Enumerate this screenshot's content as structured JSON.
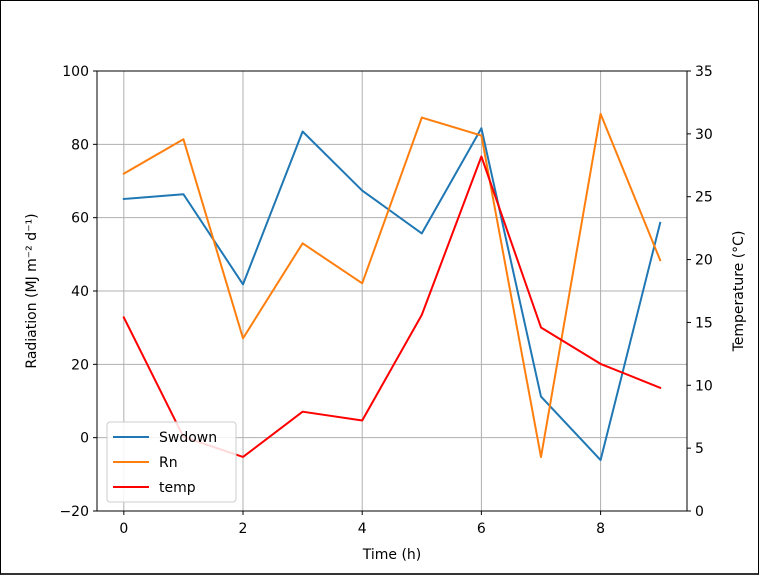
{
  "chart_data": {
    "type": "line",
    "title": "",
    "xlabel": "Time (h)",
    "ylabel_left": "Radiation (MJ m⁻² d⁻¹)",
    "ylabel_right": "Temperature (°C)",
    "xlim": [
      -0.45,
      9.45
    ],
    "ylim_left": [
      -20,
      100
    ],
    "ylim_right": [
      0,
      35
    ],
    "xticks": [
      0,
      2,
      4,
      6,
      8
    ],
    "yticks_left": [
      -20,
      0,
      20,
      40,
      60,
      80,
      100
    ],
    "yticks_right": [
      0,
      5,
      10,
      15,
      20,
      25,
      30,
      35
    ],
    "grid": true,
    "legend_position": "lower-left",
    "x": [
      0,
      1,
      2,
      3,
      4,
      5,
      6,
      7,
      8,
      9
    ],
    "series": [
      {
        "name": "Swdown",
        "axis": "left",
        "color": "#1f77b4",
        "values": [
          65.1,
          66.4,
          41.8,
          83.5,
          67.4,
          55.7,
          84.4,
          11.2,
          -6.1,
          58.6
        ]
      },
      {
        "name": "Rn",
        "axis": "left",
        "color": "#ff7f0e",
        "values": [
          72.0,
          81.4,
          27.1,
          53.0,
          42.1,
          87.3,
          82.4,
          -5.3,
          88.3,
          48.4
        ]
      },
      {
        "name": "temp",
        "axis": "right",
        "color": "#ff0000",
        "values": [
          15.4,
          5.9,
          4.3,
          7.9,
          7.2,
          15.6,
          28.2,
          14.6,
          11.7,
          9.8
        ]
      }
    ]
  }
}
